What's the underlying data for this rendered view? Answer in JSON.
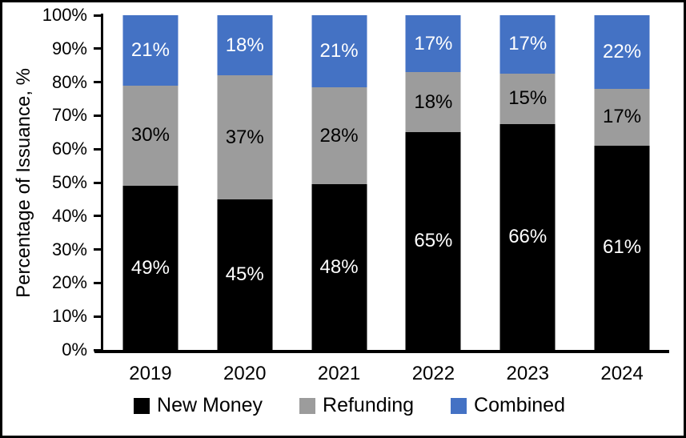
{
  "figure": {
    "background": "#ffffff",
    "border_color": "#000000"
  },
  "chart_data": {
    "type": "bar",
    "variant": "stacked-percentage",
    "title": "",
    "xlabel": "",
    "ylabel": "Percentage of Issuance, %",
    "ylim": [
      0,
      100
    ],
    "grid": false,
    "legend_position": "bottom",
    "categories": [
      "2019",
      "2020",
      "2021",
      "2022",
      "2023",
      "2024"
    ],
    "y_ticks": [
      "0%",
      "10%",
      "20%",
      "30%",
      "40%",
      "50%",
      "60%",
      "70%",
      "80%",
      "90%",
      "100%"
    ],
    "series": [
      {
        "name": "New Money",
        "color": "#000000",
        "label_color": "#ffffff",
        "values": [
          49,
          45,
          48,
          65,
          66,
          61
        ],
        "labels": [
          "49%",
          "45%",
          "48%",
          "65%",
          "66%",
          "61%"
        ]
      },
      {
        "name": "Refunding",
        "color": "#9C9C9C",
        "label_color": "#000000",
        "values": [
          30,
          37,
          28,
          18,
          15,
          17
        ],
        "labels": [
          "30%",
          "37%",
          "28%",
          "18%",
          "15%",
          "17%"
        ]
      },
      {
        "name": "Combined",
        "color": "#4472C4",
        "label_color": "#ffffff",
        "values": [
          21,
          18,
          21,
          17,
          17,
          22
        ],
        "labels": [
          "21%",
          "18%",
          "21%",
          "17%",
          "17%",
          "22%"
        ]
      }
    ]
  }
}
